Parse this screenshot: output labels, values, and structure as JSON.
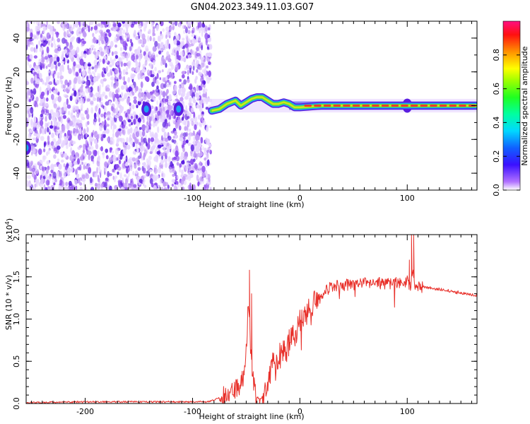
{
  "title": "GN04.2023.349.11.03.G07",
  "colors": {
    "snr_line": "#e8302a",
    "spectrogram_palette": [
      "#e6d4ff",
      "#c49cf7",
      "#8f4ef0",
      "#5a1de0",
      "#2e39e8",
      "#1ea5ee",
      "#23d8b8",
      "#59e33d",
      "#d0e51c",
      "#f2a31f",
      "#ee3a2a"
    ]
  },
  "chart_data": [
    {
      "type": "heatmap",
      "name": "spectrogram",
      "xlabel": "Height of straight line (km)",
      "ylabel": "Frequency (Hz)",
      "xlim": [
        -255,
        165
      ],
      "ylim": [
        -50,
        50
      ],
      "x_ticks": [
        -200,
        -100,
        0,
        100
      ],
      "x_tick_labels": [
        "-200",
        "-100",
        "0",
        "100"
      ],
      "y_ticks": [
        -40,
        -20,
        0,
        20,
        40
      ],
      "y_tick_labels": [
        "-40",
        "-20",
        "0",
        "20",
        "40"
      ],
      "noise_region_x": [
        -255,
        -83
      ],
      "ridge": [
        {
          "x": -82,
          "y": -3
        },
        {
          "x": -75,
          "y": -2
        },
        {
          "x": -68,
          "y": 1
        },
        {
          "x": -60,
          "y": 3
        },
        {
          "x": -55,
          "y": 0
        },
        {
          "x": -50,
          "y": 2
        },
        {
          "x": -45,
          "y": 4
        },
        {
          "x": -40,
          "y": 5
        },
        {
          "x": -35,
          "y": 5
        },
        {
          "x": -30,
          "y": 3
        },
        {
          "x": -25,
          "y": 1
        },
        {
          "x": -20,
          "y": 1
        },
        {
          "x": -15,
          "y": 2
        },
        {
          "x": -10,
          "y": 1
        },
        {
          "x": -5,
          "y": -1
        },
        {
          "x": 0,
          "y": -1
        },
        {
          "x": 20,
          "y": 0
        },
        {
          "x": 60,
          "y": 0
        },
        {
          "x": 100,
          "y": 0
        },
        {
          "x": 165,
          "y": 0
        }
      ],
      "blobs": [
        {
          "x": -143,
          "y": -2
        },
        {
          "x": -113,
          "y": -2
        },
        {
          "x": -255,
          "y": -25
        },
        {
          "x": 100,
          "y": 0
        }
      ],
      "colorbar": {
        "label": "Normalized spectral amplitude",
        "range": [
          0,
          1
        ],
        "ticks": [
          0.0,
          0.2,
          0.4,
          0.6,
          0.8
        ],
        "tick_labels": [
          "0.0",
          "0.2",
          "0.4",
          "0.6",
          "0.8"
        ]
      }
    },
    {
      "type": "line",
      "name": "snr",
      "xlabel": "Height of straight line (km)",
      "ylabel": "SNR (10 * v/v)",
      "y_multiplier_label": "(x10",
      "y_multiplier_exp": "4",
      "y_multiplier_close": ")",
      "xlim": [
        -255,
        165
      ],
      "ylim": [
        0,
        2.0
      ],
      "x_ticks": [
        -200,
        -100,
        0,
        100
      ],
      "x_tick_labels": [
        "-200",
        "-100",
        "0",
        "100"
      ],
      "y_ticks": [
        0.0,
        0.5,
        1.0,
        1.5,
        2.0
      ],
      "y_tick_labels": [
        "0.0",
        "0.5",
        "1.0",
        "1.5",
        "2.0"
      ],
      "series": [
        {
          "x": [
            -255,
            -200,
            -150,
            -120,
            -100,
            -85,
            -72,
            -65,
            -60,
            -56,
            -52,
            -50,
            -48,
            -46,
            -44,
            -42,
            -40,
            -37,
            -35,
            -32,
            -28,
            -24,
            -20,
            -15,
            -10,
            -5,
            0,
            5,
            10,
            15,
            20,
            25,
            30,
            40,
            50,
            60,
            70,
            80,
            90,
            95,
            100,
            103,
            105,
            107,
            110,
            120,
            130,
            140,
            150,
            160,
            165
          ],
          "y": [
            0.01,
            0.02,
            0.02,
            0.02,
            0.02,
            0.02,
            0.08,
            0.12,
            0.16,
            0.2,
            0.35,
            0.6,
            1.2,
            0.7,
            0.35,
            0.15,
            0.08,
            0.05,
            0.08,
            0.2,
            0.35,
            0.5,
            0.55,
            0.62,
            0.72,
            0.82,
            0.95,
            1.05,
            1.15,
            1.25,
            1.3,
            1.35,
            1.38,
            1.4,
            1.41,
            1.42,
            1.43,
            1.42,
            1.43,
            1.44,
            1.45,
            1.4,
            1.55,
            1.4,
            1.38,
            1.37,
            1.35,
            1.33,
            1.31,
            1.29,
            1.28
          ]
        }
      ]
    }
  ]
}
